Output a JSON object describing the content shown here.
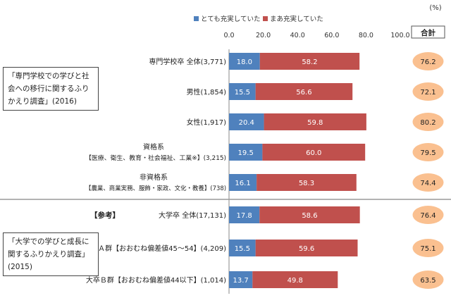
{
  "chart_data": {
    "type": "bar",
    "stacked": true,
    "orientation": "horizontal",
    "unit": "(%)",
    "xlim": [
      0,
      100
    ],
    "ticks": [
      "0.0",
      "20.0",
      "40.0",
      "60.0",
      "80.0",
      "100.0"
    ],
    "legend_position": "top",
    "series": [
      {
        "name": "とても充実していた",
        "color": "#4f81bd",
        "values": [
          18.0,
          15.5,
          20.4,
          19.5,
          16.1,
          17.8,
          15.5,
          13.7
        ]
      },
      {
        "name": "まあ充実していた",
        "color": "#c0504d",
        "values": [
          58.2,
          56.6,
          59.8,
          60.0,
          58.3,
          58.6,
          59.6,
          49.8
        ]
      }
    ],
    "categories": [
      [
        "専門学校卒 全体(3,771)"
      ],
      [
        "男性(1,854)"
      ],
      [
        "女性(1,917)"
      ],
      [
        "資格系",
        "【医療、衛生、教育・社会福祉、工業※】(3,215)"
      ],
      [
        "非資格系",
        "【農業、商業実務、服飾・家政、文化・教養】(738)"
      ],
      [
        "大学卒 全体(17,131)"
      ],
      [
        "大卒Ａ群【おおむね偏差値45～54】(4,209)"
      ],
      [
        "大卒Ｂ群【おおむね偏差値44以下】(1,014)"
      ]
    ],
    "totals_header": "合計",
    "totals": [
      "76.2",
      "72.1",
      "80.2",
      "79.5",
      "74.4",
      "76.4",
      "75.1",
      "63.5"
    ],
    "reference_label": "【参考】",
    "colors": {
      "blue": "#4f81bd",
      "red": "#c0504d",
      "total_fill": "#fac090",
      "divider": "#999999"
    }
  },
  "boxes": {
    "survey2016": [
      "「専門学校での学びと社",
      "会への移行に関するふり",
      "かえり調査」(2016)"
    ],
    "survey2015": [
      "「大学での学びと成長に",
      "関するふりかえり調査」",
      "(2015)"
    ]
  }
}
